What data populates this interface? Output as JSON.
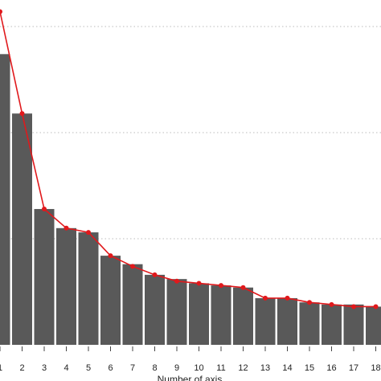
{
  "chart_data": {
    "type": "bar",
    "x_label": "Number of axis",
    "categories": [
      "1",
      "2",
      "3",
      "4",
      "5",
      "6",
      "7",
      "8",
      "9",
      "10",
      "11",
      "12",
      "13",
      "14",
      "15",
      "16",
      "17",
      "18"
    ],
    "series": [
      {
        "type": "bar",
        "color": "#595959",
        "values": [
          13.7,
          10.9,
          6.4,
          5.5,
          5.3,
          4.2,
          3.8,
          3.3,
          3.1,
          2.9,
          2.8,
          2.7,
          2.2,
          2.2,
          2.0,
          1.9,
          1.9,
          1.8
        ]
      },
      {
        "type": "line",
        "color": "#e0191c",
        "values": [
          15.7,
          10.9,
          6.4,
          5.5,
          5.3,
          4.2,
          3.7,
          3.3,
          3.0,
          2.9,
          2.8,
          2.7,
          2.2,
          2.2,
          2.0,
          1.9,
          1.8,
          1.8
        ]
      }
    ],
    "ylim": [
      0,
      16.25
    ],
    "yticks": [
      5,
      10,
      15
    ],
    "grid": true
  }
}
